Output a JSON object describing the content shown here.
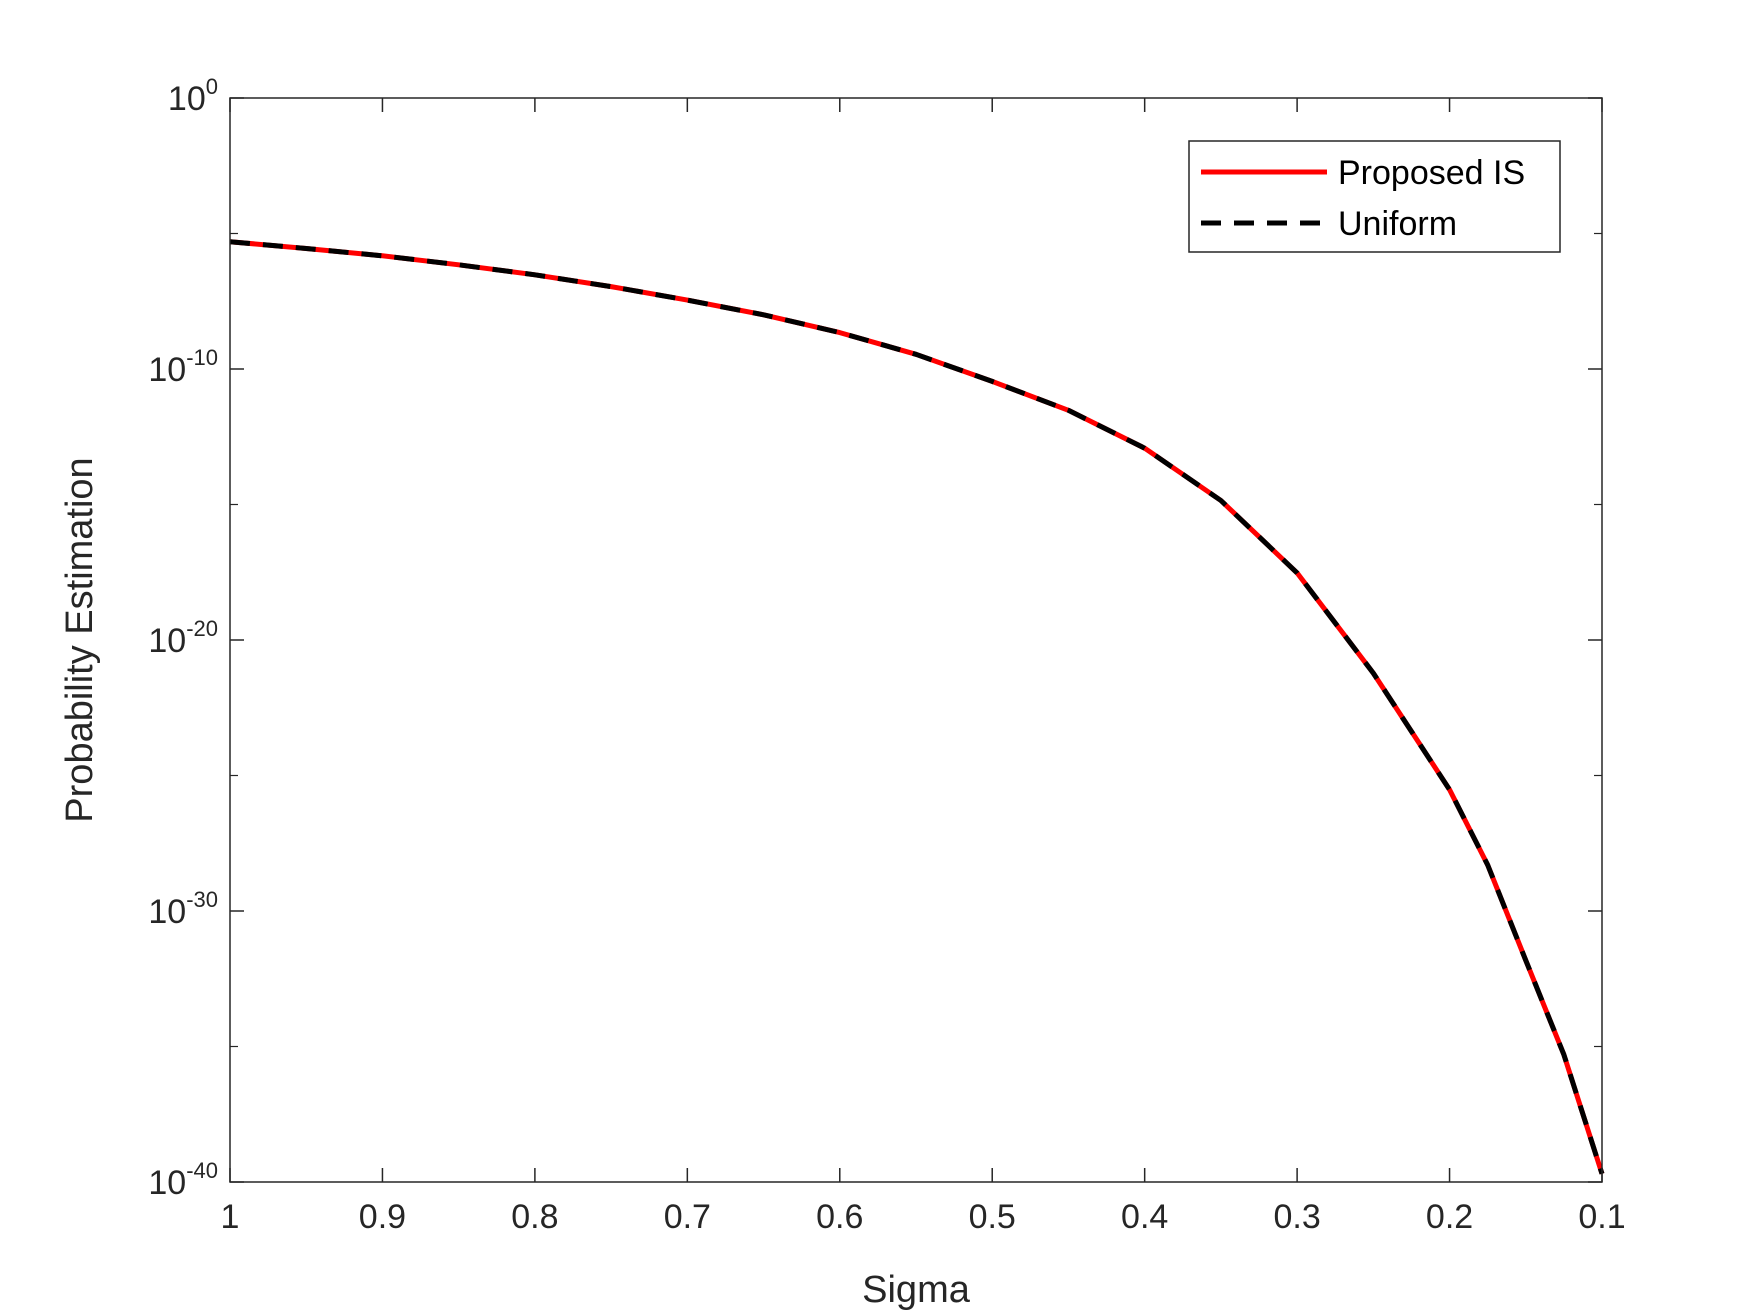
{
  "chart_data": {
    "type": "line",
    "title": "",
    "xlabel": "Sigma",
    "ylabel": "Probability Estimation",
    "x_reversed": true,
    "xlim": [
      0.1,
      1
    ],
    "ylim": [
      1e-40,
      1
    ],
    "y_scale": "log",
    "grid": false,
    "legend_position": "top-right",
    "x_ticks": [
      {
        "value": 1,
        "label": "1"
      },
      {
        "value": 0.9,
        "label": "0.9"
      },
      {
        "value": 0.8,
        "label": "0.8"
      },
      {
        "value": 0.7,
        "label": "0.7"
      },
      {
        "value": 0.6,
        "label": "0.6"
      },
      {
        "value": 0.5,
        "label": "0.5"
      },
      {
        "value": 0.4,
        "label": "0.4"
      },
      {
        "value": 0.3,
        "label": "0.3"
      },
      {
        "value": 0.2,
        "label": "0.2"
      },
      {
        "value": 0.1,
        "label": "0.1"
      }
    ],
    "y_ticks": [
      {
        "value": 1,
        "base": "10",
        "exp": "0"
      },
      {
        "value": 1e-10,
        "base": "10",
        "exp": "-10"
      },
      {
        "value": 1e-20,
        "base": "10",
        "exp": "-20"
      },
      {
        "value": 1e-30,
        "base": "10",
        "exp": "-30"
      },
      {
        "value": 1e-40,
        "base": "10",
        "exp": "-40"
      }
    ],
    "x": [
      1,
      0.95,
      0.9,
      0.85,
      0.8,
      0.75,
      0.7,
      0.65,
      0.6,
      0.55,
      0.5,
      0.45,
      0.4,
      0.35,
      0.3,
      0.25,
      0.2,
      0.175,
      0.15,
      0.125,
      0.1
    ],
    "series": [
      {
        "name": "Proposed IS",
        "color": "#ff0000",
        "style": "solid",
        "values": [
          5e-06,
          2.8e-06,
          1.5e-06,
          7e-07,
          3e-07,
          1.1e-07,
          3.5e-08,
          1e-08,
          2.2e-09,
          3.5e-10,
          3.5e-11,
          3e-12,
          1.2e-13,
          1.4e-15,
          3e-18,
          6e-22,
          3e-26,
          5e-29,
          1.5e-32,
          5e-36,
          2e-40
        ]
      },
      {
        "name": "Uniform",
        "color": "#000000",
        "style": "dashed",
        "values": [
          5e-06,
          2.8e-06,
          1.5e-06,
          7e-07,
          3e-07,
          1.1e-07,
          3.5e-08,
          1e-08,
          2.2e-09,
          3.5e-10,
          3.5e-11,
          3e-12,
          1.2e-13,
          1.4e-15,
          3e-18,
          6e-22,
          3e-26,
          5e-29,
          1.5e-32,
          5e-36,
          2e-40
        ]
      }
    ]
  }
}
